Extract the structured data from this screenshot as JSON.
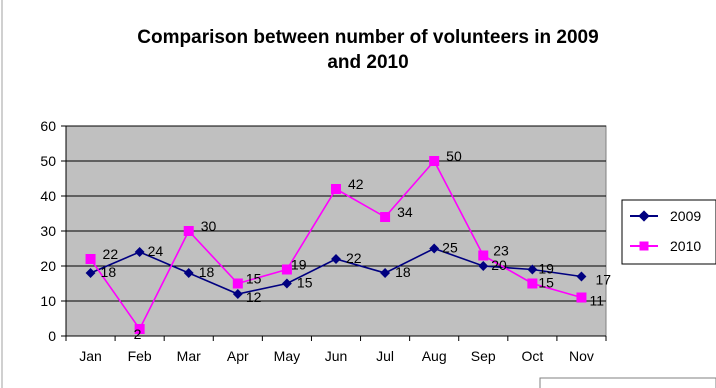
{
  "chart_data": {
    "type": "line",
    "title": "Comparison between number of volunteers in 2009 and 2010",
    "title_lines": [
      "Comparison between number of volunteers in 2009",
      "and 2010"
    ],
    "xlabel": "",
    "ylabel": "",
    "categories": [
      "Jan",
      "Feb",
      "Mar",
      "Apr",
      "May",
      "Jun",
      "Jul",
      "Aug",
      "Sep",
      "Oct",
      "Nov"
    ],
    "ylim": [
      0,
      60
    ],
    "yticks": [
      "0",
      "10",
      "20",
      "30",
      "40",
      "50",
      "60"
    ],
    "grid": true,
    "legend_position": "right",
    "plot_background": "#c0c0c0",
    "series": [
      {
        "name": "2009",
        "values": [
          18,
          24,
          18,
          12,
          15,
          22,
          18,
          25,
          20,
          19,
          17
        ],
        "labels": [
          "18",
          "24",
          "18",
          "12",
          "15",
          "22",
          "18",
          "25",
          "20",
          "19",
          "17"
        ],
        "color": "#000080",
        "marker": "diamond"
      },
      {
        "name": "2010",
        "values": [
          22,
          2,
          30,
          15,
          19,
          42,
          34,
          50,
          23,
          15,
          11
        ],
        "labels": [
          "22",
          "2",
          "30",
          "15",
          "19",
          "42",
          "34",
          "50",
          "23",
          "15",
          "11"
        ],
        "color": "#ff00ff",
        "marker": "square"
      }
    ]
  }
}
